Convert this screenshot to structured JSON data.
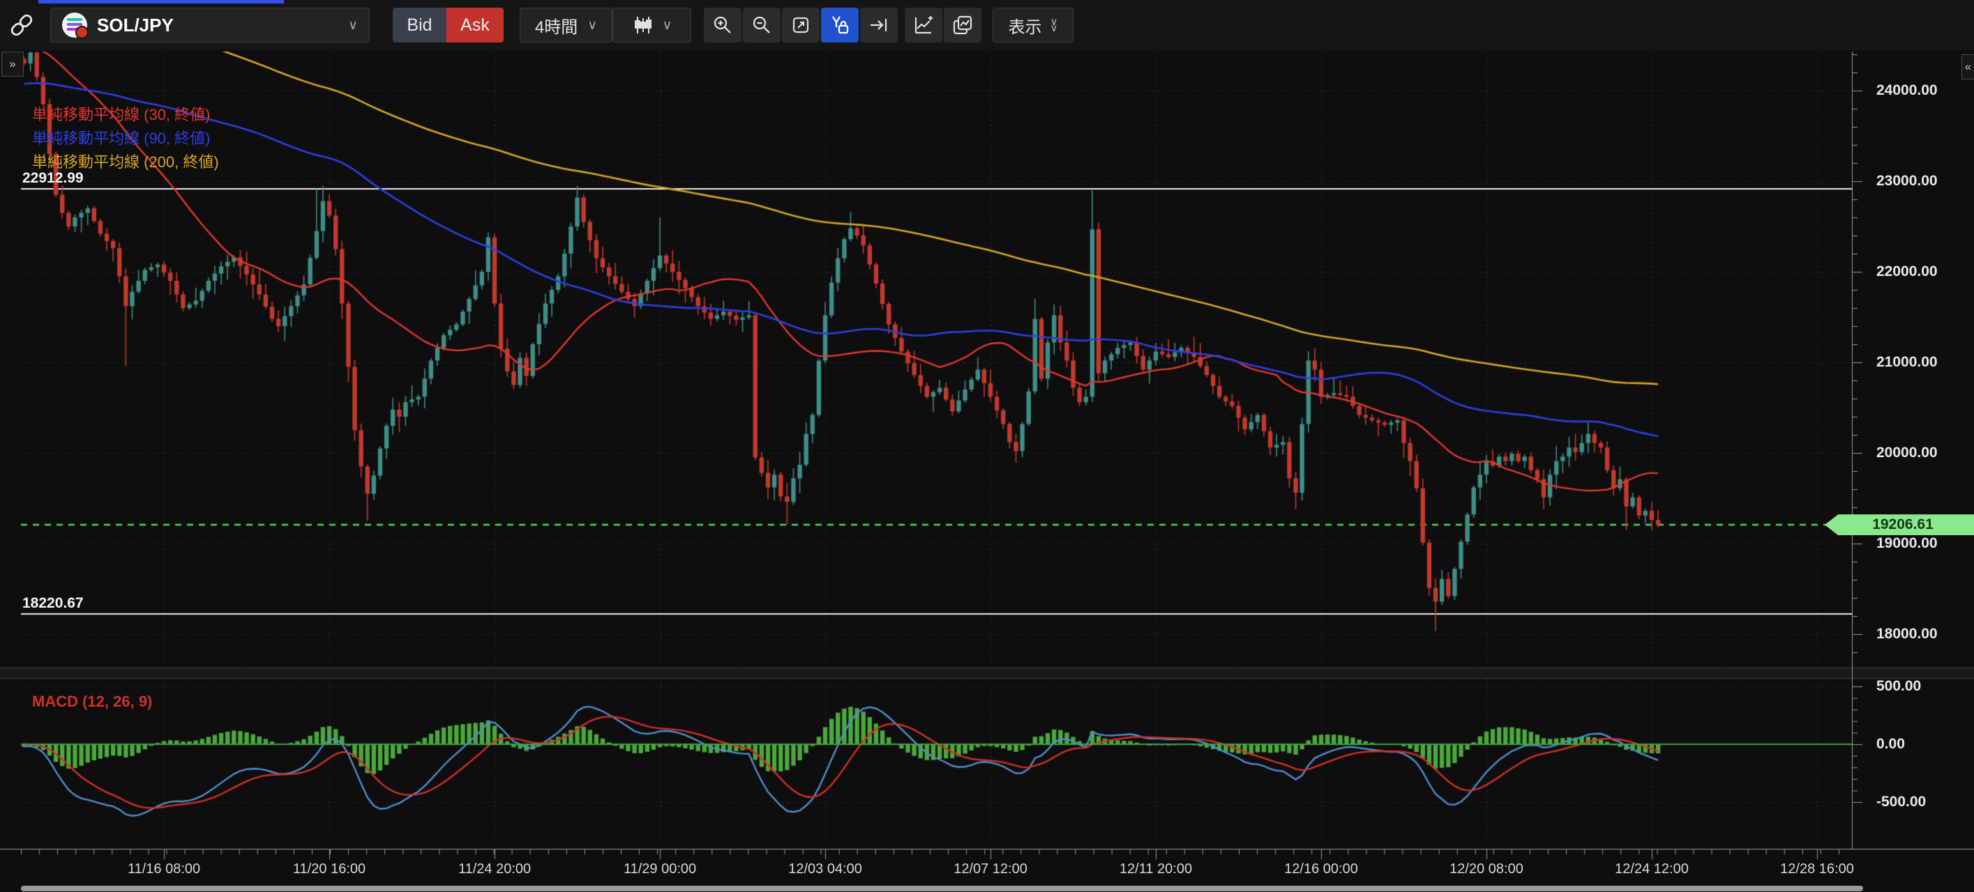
{
  "toolbar": {
    "symbol": "SOL/JPY",
    "bid_label": "Bid",
    "ask_label": "Ask",
    "timeframe": "4時間",
    "display_label": "表示",
    "icons": [
      "link-icon",
      "solana-icon",
      "chevron-down-icon",
      "candlestick-type-icon",
      "zoom-in-icon",
      "zoom-out-icon",
      "fit-screen-icon",
      "y-axis-lock-icon",
      "go-to-latest-icon",
      "add-indicator-icon",
      "compare-chart-icon",
      "double-chevron-icon"
    ],
    "accent_blue": "#2152cc",
    "ask_red": "#c2342b",
    "bid_slate": "#3a3f4d"
  },
  "chart": {
    "expand_left": "»",
    "collapse_right": "«",
    "legend": [
      {
        "label": "単純移動平均線 (30, 終値)",
        "color": "#e3372e"
      },
      {
        "label": "単純移動平均線 (90, 終値)",
        "color": "#2d3fe0"
      },
      {
        "label": "単純移動平均線 (200, 終値)",
        "color": "#d9a521"
      }
    ],
    "level_labels": [
      "22912.99",
      "18220.67"
    ],
    "current_price_label": "19206.61",
    "macd_label": "MACD (12, 26, 9)"
  },
  "chart_data": {
    "type": "candlestick",
    "symbol": "SOL/JPY",
    "timeframe": "4h",
    "grid": true,
    "colors": {
      "background": "#0e0e0e",
      "grid": "rgba(255,255,255,0.16)",
      "candle_up": "#3e8e89",
      "candle_down": "#c23a2c",
      "sma30": "#e3372e",
      "sma90": "#2d3fe0",
      "sma200": "#d9a521",
      "level_line": "#ededed",
      "price_line": "#44e05b",
      "macd_hist": "#4ba83c",
      "macd_line": "#4f8fd0",
      "macd_signal": "#cf3227",
      "zero_line": "#3da23d",
      "axis": "#9a9a9a"
    },
    "y_axis": {
      "min": 17550,
      "max": 24550,
      "ticks": [
        {
          "price": 24000,
          "label": "24000.00"
        },
        {
          "price": 23000,
          "label": "23000.00"
        },
        {
          "price": 22000,
          "label": "22000.00"
        },
        {
          "price": 21000,
          "label": "21000.00"
        },
        {
          "price": 20000,
          "label": "20000.00"
        },
        {
          "price": 19000,
          "label": "19000.00"
        },
        {
          "price": 18000,
          "label": "18000.00"
        }
      ]
    },
    "x_axis": {
      "ticks": [
        {
          "idx": 22,
          "label": "11/16 08:00"
        },
        {
          "idx": 48,
          "label": "11/20 16:00"
        },
        {
          "idx": 74,
          "label": "11/24 20:00"
        },
        {
          "idx": 100,
          "label": "11/29 00:00"
        },
        {
          "idx": 126,
          "label": "12/03 04:00"
        },
        {
          "idx": 152,
          "label": "12/07 12:00"
        },
        {
          "idx": 178,
          "label": "12/11 20:00"
        },
        {
          "idx": 204,
          "label": "12/16 00:00"
        },
        {
          "idx": 230,
          "label": "12/20 08:00"
        },
        {
          "idx": 256,
          "label": "12/24 12:00"
        },
        {
          "idx": 282,
          "label": "12/28 16:00"
        }
      ]
    },
    "macd_axis": {
      "ticks": [
        {
          "v": 500,
          "label": "500.00"
        },
        {
          "v": 0,
          "label": "0.00"
        },
        {
          "v": -500,
          "label": "-500.00"
        }
      ]
    },
    "levels": [
      22912.99,
      18220.67
    ],
    "last_price": 19206.61,
    "overlays": [
      {
        "type": "sma",
        "period": 30,
        "price_source": "close"
      },
      {
        "type": "sma",
        "period": 90,
        "price_source": "close"
      },
      {
        "type": "sma",
        "period": 200,
        "price_source": "close"
      }
    ],
    "macd": {
      "fast": 12,
      "slow": 26,
      "signal": 9
    },
    "num_candles": 258,
    "noise_seed": 7,
    "wick_base": 22,
    "wick_span": 150,
    "prehistory_anchors": [
      [
        -200,
        28200
      ],
      [
        -170,
        27300
      ],
      [
        -145,
        26400
      ],
      [
        -120,
        25300
      ],
      [
        -100,
        24500
      ],
      [
        -85,
        23800
      ],
      [
        -70,
        23300
      ],
      [
        -55,
        23900
      ],
      [
        -40,
        24300
      ],
      [
        -25,
        24600
      ],
      [
        -12,
        24450
      ],
      [
        -1,
        24350
      ]
    ],
    "close_anchors": [
      [
        0,
        24300
      ],
      [
        1,
        24420
      ],
      [
        2,
        24150
      ],
      [
        3,
        23850
      ],
      [
        4,
        23300
      ],
      [
        5,
        22850
      ],
      [
        6,
        22650
      ],
      [
        7,
        22500
      ],
      [
        8,
        22600
      ],
      [
        10,
        22700
      ],
      [
        12,
        22420
      ],
      [
        14,
        22260
      ],
      [
        15,
        21950
      ],
      [
        16,
        21620
      ],
      [
        17,
        21780
      ],
      [
        19,
        22020
      ],
      [
        21,
        22080
      ],
      [
        23,
        21900
      ],
      [
        25,
        21600
      ],
      [
        27,
        21680
      ],
      [
        29,
        21900
      ],
      [
        31,
        22060
      ],
      [
        33,
        22160
      ],
      [
        35,
        21970
      ],
      [
        37,
        21750
      ],
      [
        39,
        21480
      ],
      [
        40,
        21400
      ],
      [
        42,
        21620
      ],
      [
        44,
        21860
      ],
      [
        46,
        22450
      ],
      [
        47,
        22780
      ],
      [
        48,
        22620
      ],
      [
        49,
        22250
      ],
      [
        50,
        21650
      ],
      [
        51,
        20950
      ],
      [
        52,
        20250
      ],
      [
        53,
        19850
      ],
      [
        54,
        19550
      ],
      [
        55,
        19750
      ],
      [
        56,
        20050
      ],
      [
        57,
        20300
      ],
      [
        58,
        20480
      ],
      [
        59,
        20400
      ],
      [
        60,
        20560
      ],
      [
        62,
        20620
      ],
      [
        64,
        21020
      ],
      [
        66,
        21300
      ],
      [
        68,
        21420
      ],
      [
        70,
        21700
      ],
      [
        72,
        22000
      ],
      [
        73,
        22380
      ],
      [
        74,
        21650
      ],
      [
        75,
        21150
      ],
      [
        76,
        20900
      ],
      [
        77,
        20750
      ],
      [
        78,
        21050
      ],
      [
        79,
        20850
      ],
      [
        80,
        21200
      ],
      [
        82,
        21650
      ],
      [
        84,
        21950
      ],
      [
        85,
        22200
      ],
      [
        86,
        22500
      ],
      [
        87,
        22820
      ],
      [
        88,
        22550
      ],
      [
        90,
        22150
      ],
      [
        92,
        21950
      ],
      [
        94,
        21780
      ],
      [
        96,
        21620
      ],
      [
        98,
        21900
      ],
      [
        100,
        22180
      ],
      [
        102,
        22000
      ],
      [
        104,
        21820
      ],
      [
        106,
        21620
      ],
      [
        108,
        21480
      ],
      [
        110,
        21560
      ],
      [
        112,
        21470
      ],
      [
        114,
        21520
      ],
      [
        115,
        19950
      ],
      [
        116,
        19780
      ],
      [
        117,
        19620
      ],
      [
        118,
        19760
      ],
      [
        119,
        19520
      ],
      [
        120,
        19460
      ],
      [
        121,
        19720
      ],
      [
        122,
        19870
      ],
      [
        123,
        20210
      ],
      [
        124,
        20420
      ],
      [
        125,
        21020
      ],
      [
        126,
        21520
      ],
      [
        127,
        21880
      ],
      [
        128,
        22150
      ],
      [
        129,
        22360
      ],
      [
        130,
        22480
      ],
      [
        131,
        22400
      ],
      [
        132,
        22290
      ],
      [
        133,
        22080
      ],
      [
        134,
        21870
      ],
      [
        136,
        21420
      ],
      [
        138,
        21120
      ],
      [
        140,
        20860
      ],
      [
        142,
        20620
      ],
      [
        144,
        20720
      ],
      [
        146,
        20460
      ],
      [
        148,
        20700
      ],
      [
        150,
        20920
      ],
      [
        152,
        20620
      ],
      [
        154,
        20320
      ],
      [
        155,
        20120
      ],
      [
        156,
        20020
      ],
      [
        157,
        20320
      ],
      [
        158,
        20680
      ],
      [
        159,
        21480
      ],
      [
        160,
        20820
      ],
      [
        161,
        21220
      ],
      [
        162,
        21520
      ],
      [
        163,
        21220
      ],
      [
        164,
        21020
      ],
      [
        165,
        20720
      ],
      [
        166,
        20560
      ],
      [
        167,
        20620
      ],
      [
        168,
        22470
      ],
      [
        169,
        20880
      ],
      [
        170,
        21020
      ],
      [
        172,
        21160
      ],
      [
        174,
        21220
      ],
      [
        176,
        20920
      ],
      [
        178,
        21120
      ],
      [
        180,
        21060
      ],
      [
        182,
        21160
      ],
      [
        184,
        21060
      ],
      [
        186,
        20860
      ],
      [
        188,
        20620
      ],
      [
        190,
        20520
      ],
      [
        192,
        20260
      ],
      [
        194,
        20420
      ],
      [
        196,
        20060
      ],
      [
        198,
        20120
      ],
      [
        199,
        19720
      ],
      [
        200,
        19560
      ],
      [
        201,
        20320
      ],
      [
        202,
        21020
      ],
      [
        203,
        20920
      ],
      [
        204,
        20620
      ],
      [
        206,
        20660
      ],
      [
        208,
        20620
      ],
      [
        210,
        20420
      ],
      [
        212,
        20360
      ],
      [
        214,
        20310
      ],
      [
        216,
        20360
      ],
      [
        217,
        20110
      ],
      [
        218,
        19910
      ],
      [
        219,
        19610
      ],
      [
        220,
        19010
      ],
      [
        221,
        18510
      ],
      [
        222,
        18360
      ],
      [
        223,
        18610
      ],
      [
        224,
        18420
      ],
      [
        225,
        18720
      ],
      [
        226,
        19020
      ],
      [
        227,
        19320
      ],
      [
        228,
        19620
      ],
      [
        229,
        19760
      ],
      [
        230,
        19910
      ],
      [
        231,
        19860
      ],
      [
        232,
        19960
      ],
      [
        233,
        19910
      ],
      [
        234,
        19990
      ],
      [
        235,
        19910
      ],
      [
        236,
        19960
      ],
      [
        237,
        19810
      ],
      [
        238,
        19710
      ],
      [
        239,
        19510
      ],
      [
        240,
        19760
      ],
      [
        241,
        19910
      ],
      [
        242,
        19960
      ],
      [
        243,
        20060
      ],
      [
        244,
        20010
      ],
      [
        245,
        20110
      ],
      [
        246,
        20210
      ],
      [
        247,
        20110
      ],
      [
        248,
        20060
      ],
      [
        249,
        19810
      ],
      [
        250,
        19610
      ],
      [
        251,
        19710
      ],
      [
        252,
        19410
      ],
      [
        253,
        19510
      ],
      [
        254,
        19310
      ],
      [
        255,
        19360
      ],
      [
        256,
        19260
      ],
      [
        257,
        19206.61
      ]
    ],
    "wick_overrides": {
      "16": {
        "low": 20960
      },
      "46": {
        "high": 22913
      },
      "47": {
        "high": 22950
      },
      "54": {
        "low": 19250
      },
      "87": {
        "high": 22950
      },
      "100": {
        "high": 22600
      },
      "120": {
        "low": 19215
      },
      "130": {
        "high": 22660
      },
      "159": {
        "high": 21700
      },
      "168": {
        "high": 22900
      },
      "200": {
        "low": 19380
      },
      "222": {
        "low": 18030
      },
      "246": {
        "high": 20330
      },
      "252": {
        "low": 19150
      },
      "257": {
        "low": 19180
      }
    }
  }
}
